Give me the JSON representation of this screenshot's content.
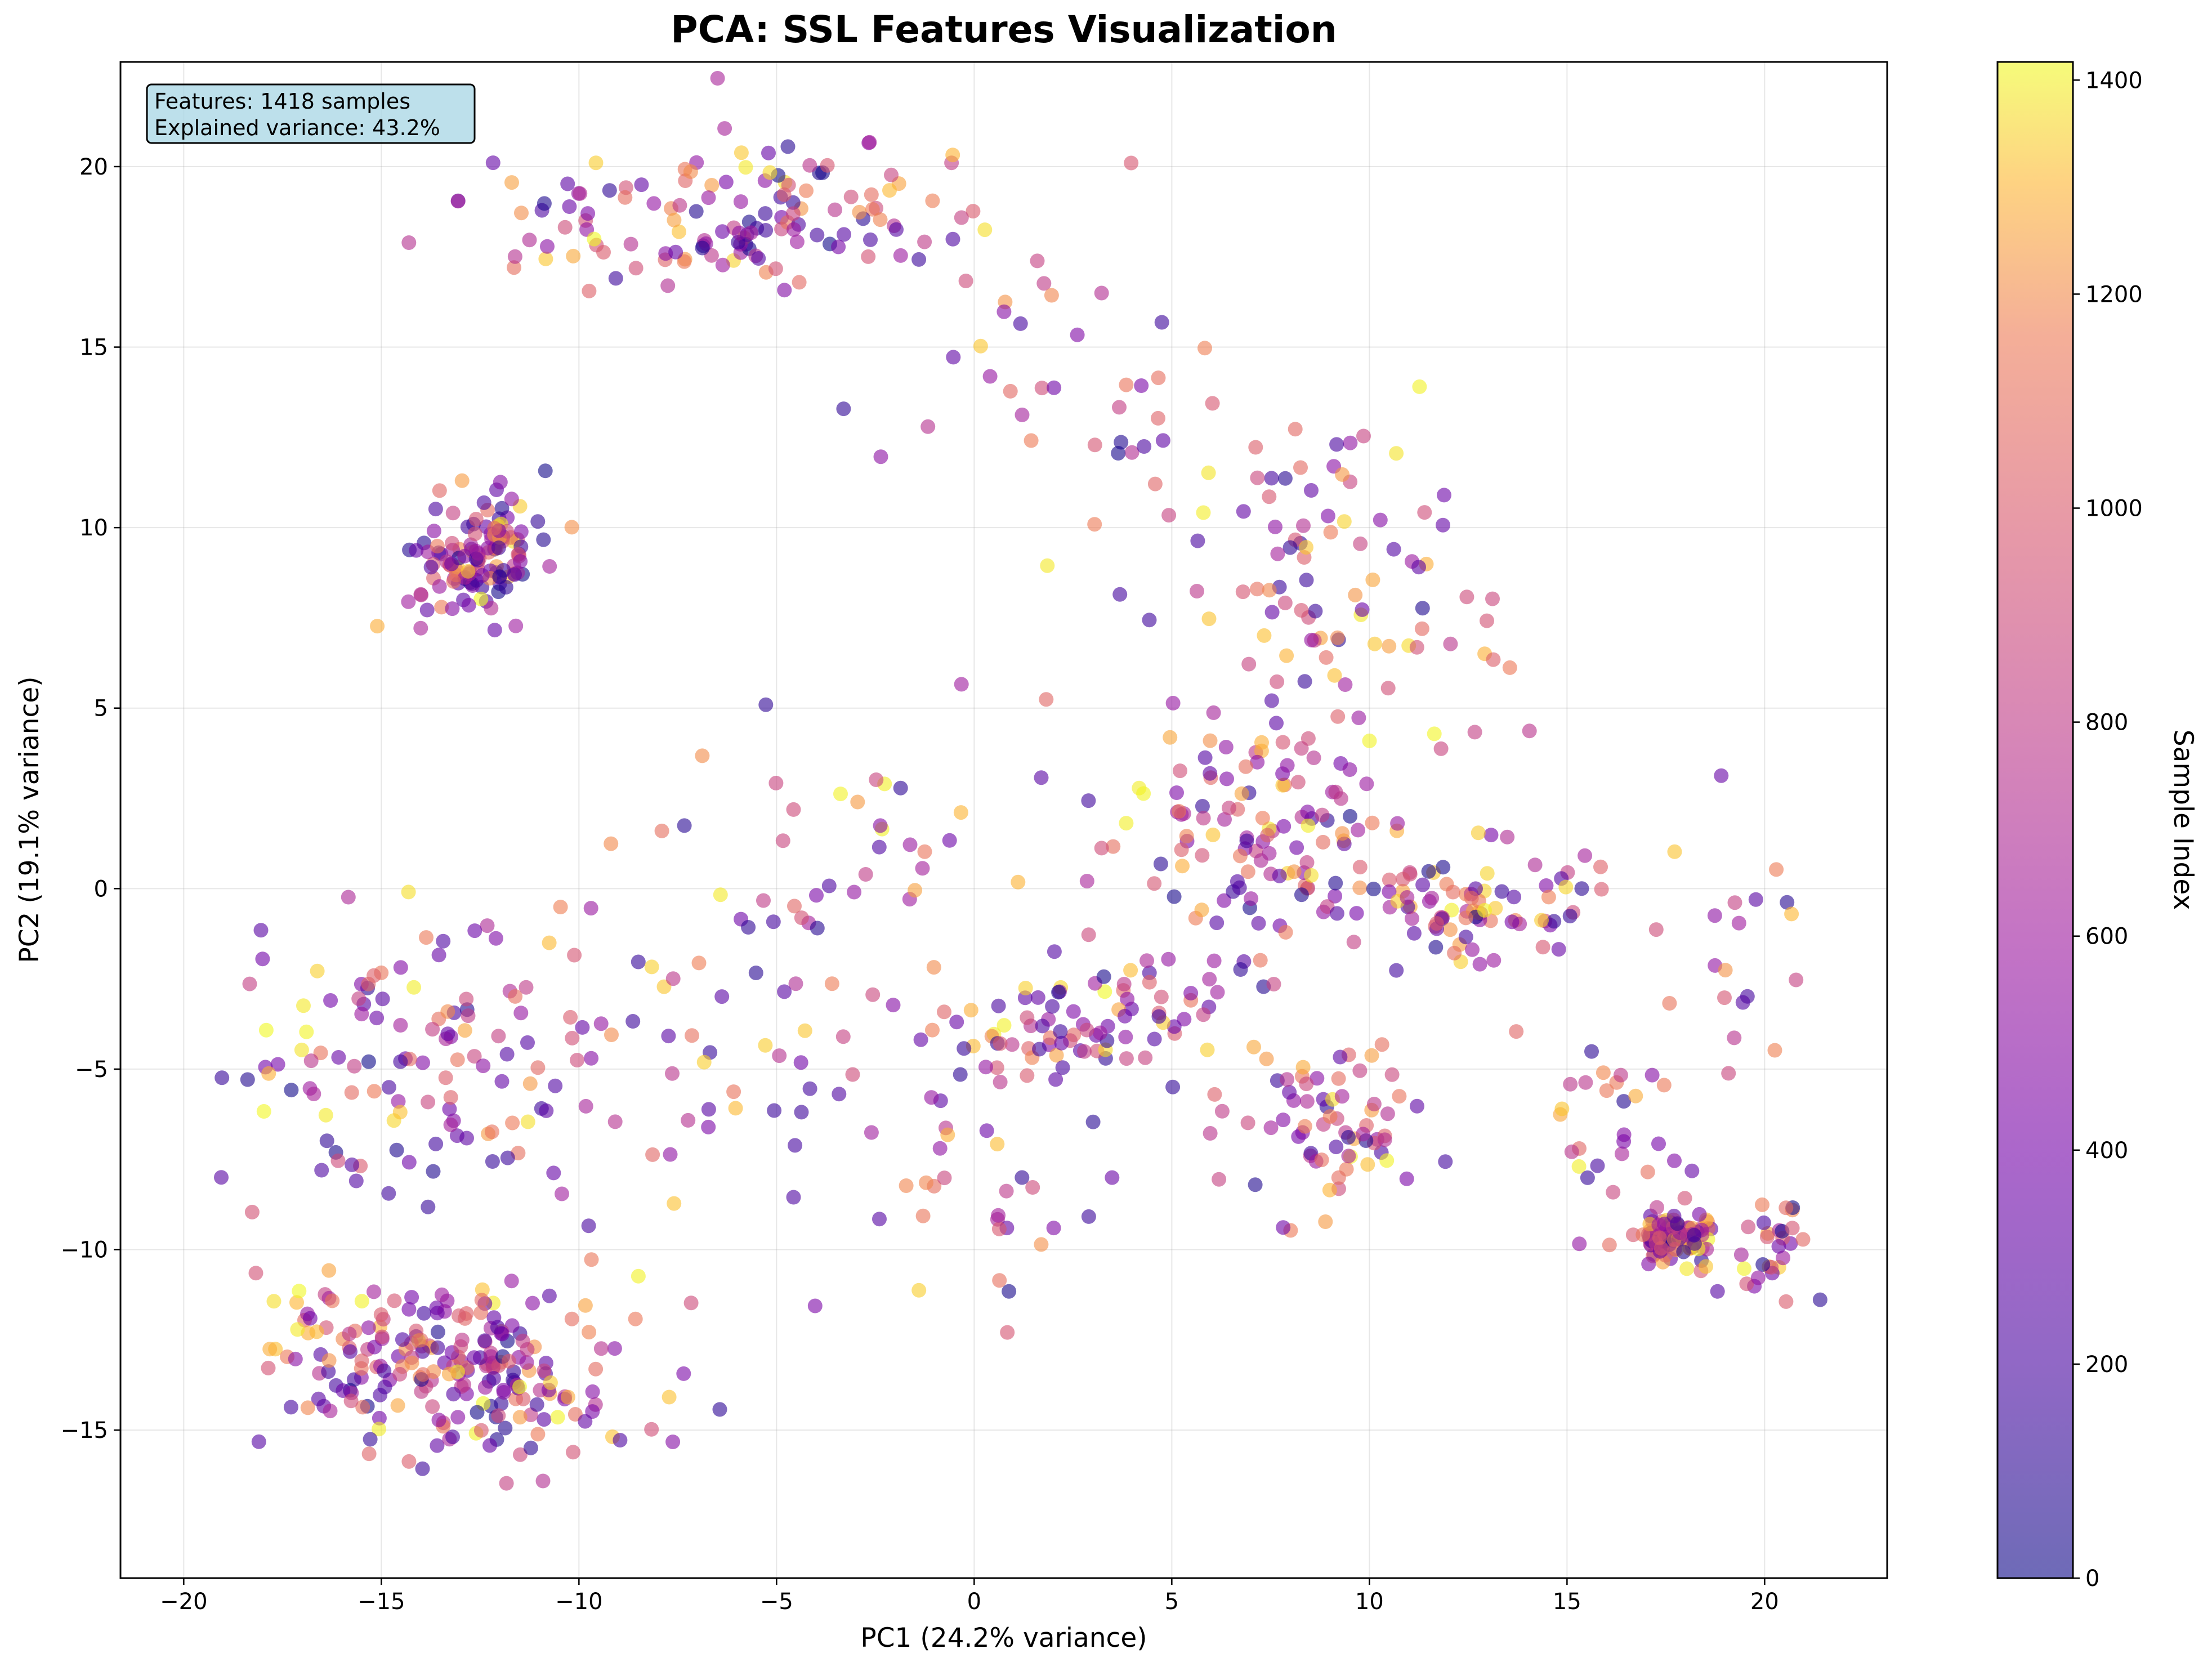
{
  "chart_data": {
    "type": "scatter",
    "title": "PCA: SSL Features Visualization",
    "xlabel": "PC1 (24.2% variance)",
    "ylabel": "PC2 (19.1% variance)",
    "xlim": [
      -21.6,
      23.1
    ],
    "ylim": [
      -19.1,
      22.9
    ],
    "x_ticks": [
      -20,
      -15,
      -10,
      -5,
      0,
      5,
      10,
      15,
      20
    ],
    "y_ticks": [
      -15,
      -10,
      -5,
      0,
      5,
      10,
      15,
      20
    ],
    "x_tick_labels": [
      "−20",
      "−15",
      "−10",
      "−5",
      "0",
      "5",
      "10",
      "15",
      "20"
    ],
    "y_tick_labels": [
      "−15",
      "−10",
      "−5",
      "0",
      "5",
      "10",
      "15",
      "20"
    ],
    "grid": true,
    "colormap": "plasma",
    "marker_alpha": 0.6,
    "colorbar": {
      "label": "Sample Index",
      "range": [
        0,
        1417
      ],
      "ticks": [
        0,
        200,
        400,
        600,
        800,
        1000,
        1200,
        1400
      ],
      "tick_labels": [
        "0",
        "200",
        "400",
        "600",
        "800",
        "1000",
        "1200",
        "1400"
      ]
    },
    "annotation": {
      "line1": "Features: 1418 samples",
      "line2": "Explained variance: 43.2%",
      "background": "#add8e6"
    },
    "clusters": [
      {
        "center": [
          -12.6,
          9.2
        ],
        "spread": [
          0.9,
          0.7
        ],
        "count": 130,
        "rotation": 0.75
      },
      {
        "center": [
          17.8,
          -9.6
        ],
        "spread": [
          0.5,
          0.35
        ],
        "count": 95,
        "rotation": 0
      },
      {
        "center": [
          -13.3,
          -13.2
        ],
        "spread": [
          2.3,
          1.2
        ],
        "count": 230,
        "rotation": -0.25
      },
      {
        "center": [
          -5.5,
          18.6
        ],
        "spread": [
          3.3,
          1.0
        ],
        "count": 140,
        "rotation": 0.05
      },
      {
        "center": [
          7.0,
          1.5
        ],
        "spread": [
          1.8,
          1.5
        ],
        "count": 110,
        "rotation": 0
      },
      {
        "center": [
          12.3,
          -0.6
        ],
        "spread": [
          1.7,
          0.8
        ],
        "count": 90,
        "rotation": 0
      },
      {
        "center": [
          3.2,
          -3.5
        ],
        "spread": [
          2.0,
          0.9
        ],
        "count": 90,
        "rotation": 0.3
      },
      {
        "center": [
          9.0,
          -6.5
        ],
        "spread": [
          1.4,
          1.2
        ],
        "count": 70,
        "rotation": 0
      },
      {
        "center": [
          -14.0,
          -4.5
        ],
        "spread": [
          2.5,
          2.2
        ],
        "count": 110,
        "rotation": 0
      },
      {
        "center": [
          9.0,
          8.0
        ],
        "spread": [
          2.5,
          2.0
        ],
        "count": 80,
        "rotation": -0.5
      },
      {
        "center": [
          4.0,
          13.0
        ],
        "spread": [
          3.5,
          2.0
        ],
        "count": 55,
        "rotation": -0.55
      },
      {
        "center": [
          20.1,
          -10.0
        ],
        "spread": [
          0.5,
          0.6
        ],
        "count": 30,
        "rotation": 0
      },
      {
        "center": [
          -6.0,
          -5.0
        ],
        "spread": [
          3.5,
          4.0
        ],
        "count": 80,
        "rotation": 0
      },
      {
        "center": [
          1.0,
          -8.0
        ],
        "spread": [
          1.5,
          1.8
        ],
        "count": 30,
        "rotation": 0
      },
      {
        "center": [
          16.0,
          -6.5
        ],
        "spread": [
          0.9,
          1.5
        ],
        "count": 28,
        "rotation": 0
      },
      {
        "center": [
          19.5,
          -2.0
        ],
        "spread": [
          1.0,
          2.0
        ],
        "count": 20,
        "rotation": 0
      },
      {
        "center": [
          -2.0,
          0.0
        ],
        "spread": [
          3.0,
          3.0
        ],
        "count": 30,
        "rotation": 0
      }
    ],
    "sample_count": 1418
  }
}
